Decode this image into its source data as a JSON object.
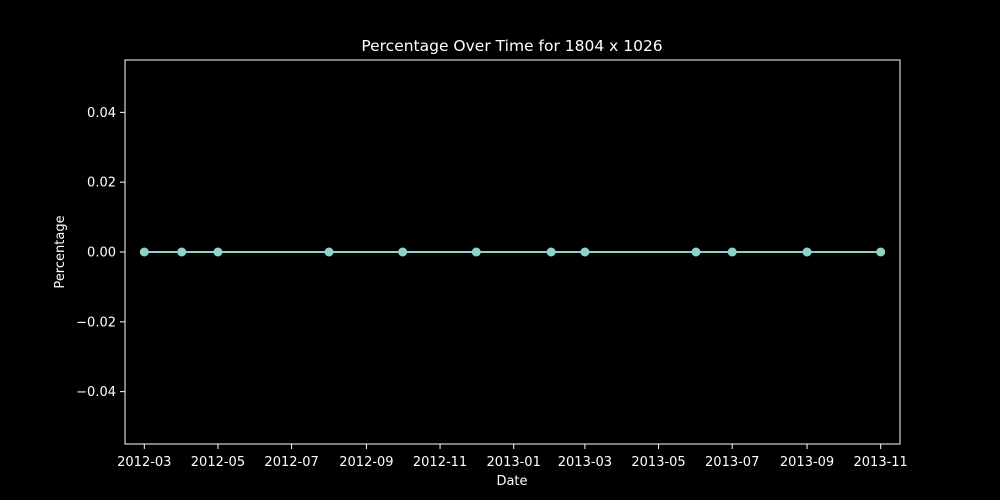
{
  "chart_data": {
    "type": "line",
    "title": "Percentage Over Time for 1804 x 1026",
    "xlabel": "Date",
    "ylabel": "Percentage",
    "x_type": "date",
    "xlim": [
      "2012-02-14",
      "2013-11-17"
    ],
    "ylim": [
      -0.055,
      0.055
    ],
    "x_ticks": [
      "2012-03",
      "2012-05",
      "2012-07",
      "2012-09",
      "2012-11",
      "2013-01",
      "2013-03",
      "2013-05",
      "2013-07",
      "2013-09",
      "2013-11"
    ],
    "y_ticks": [
      0.04,
      0.02,
      0.0,
      -0.02,
      -0.04
    ],
    "y_tick_labels": [
      "0.04",
      "0.02",
      "0.00",
      "−0.02",
      "−0.04"
    ],
    "grid": false,
    "legend": "none",
    "series": [
      {
        "color": "#8dd3c7",
        "marker": "circle",
        "points": [
          {
            "x": "2012-03-01",
            "y": 0.0
          },
          {
            "x": "2012-04-01",
            "y": 0.0
          },
          {
            "x": "2012-05-01",
            "y": 0.0
          },
          {
            "x": "2012-08-01",
            "y": 0.0
          },
          {
            "x": "2012-10-01",
            "y": 0.0
          },
          {
            "x": "2012-12-01",
            "y": 0.0
          },
          {
            "x": "2013-02-01",
            "y": 0.0
          },
          {
            "x": "2013-03-01",
            "y": 0.0
          },
          {
            "x": "2013-06-01",
            "y": 0.0
          },
          {
            "x": "2013-07-01",
            "y": 0.0
          },
          {
            "x": "2013-09-01",
            "y": 0.0
          },
          {
            "x": "2013-11-01",
            "y": 0.0
          }
        ]
      }
    ]
  }
}
